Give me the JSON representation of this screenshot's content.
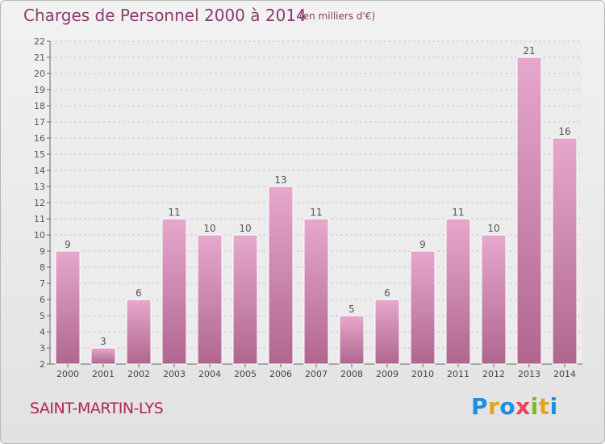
{
  "header": {
    "title": "Charges de Personnel 2000 à 2014",
    "subtitle": "(en milliers d'€)"
  },
  "footer": {
    "commune": "SAINT-MARTIN-LYS",
    "brand_letters": [
      "P",
      "r",
      "o",
      "x",
      "i",
      "t",
      "i"
    ]
  },
  "colors": {
    "bar_top": "#e6a8cc",
    "bar_bottom": "#b0668f",
    "text_title": "#8c3b6b",
    "commune": "#b0245a"
  },
  "chart_data": {
    "type": "bar",
    "title": "Charges de Personnel 2000 à 2014",
    "subtitle": "(en milliers d'€)",
    "categories": [
      "2000",
      "2001",
      "2002",
      "2003",
      "2004",
      "2005",
      "2006",
      "2007",
      "2008",
      "2009",
      "2010",
      "2011",
      "2012",
      "2013",
      "2014"
    ],
    "values": [
      9,
      3,
      6,
      11,
      10,
      10,
      13,
      11,
      5,
      6,
      9,
      11,
      10,
      21,
      16
    ],
    "ylim": [
      2,
      22
    ],
    "yticks": [
      2,
      3,
      4,
      5,
      6,
      7,
      8,
      9,
      10,
      11,
      12,
      13,
      14,
      15,
      16,
      17,
      18,
      19,
      20,
      21,
      22
    ],
    "grid": true,
    "data_labels": true,
    "xlabel": "",
    "ylabel": ""
  }
}
